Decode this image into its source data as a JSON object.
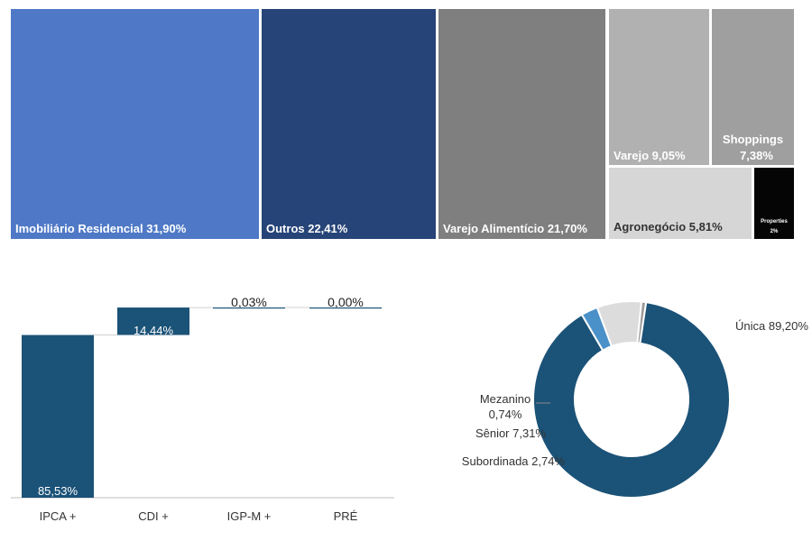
{
  "chart_data": [
    {
      "type": "treemap",
      "items": [
        {
          "label": "Imobiliário Residencial 31,90%",
          "value": 31.9,
          "color": "#4f79c6",
          "text_color": "#ffffff"
        },
        {
          "label": "Outros 22,41%",
          "value": 22.41,
          "color": "#264478",
          "text_color": "#ffffff"
        },
        {
          "label": "Varejo Alimentício 21,70%",
          "value": 21.7,
          "color": "#7f7f7f",
          "text_color": "#ffffff"
        },
        {
          "label": "Varejo 9,05%",
          "value": 9.05,
          "color": "#b1b1b1",
          "text_color": "#ffffff"
        },
        {
          "label": "Shoppings 7,38%",
          "value": 7.38,
          "color": "#9f9f9f",
          "text_color": "#ffffff",
          "lines": [
            "Shoppings",
            "7,38%"
          ]
        },
        {
          "label": "Agronegócio 5,81%",
          "value": 5.81,
          "color": "#d6d6d6",
          "text_color": "#333333"
        },
        {
          "label": "Properties 2%",
          "value": 2.0,
          "color": "#050505",
          "text_color": "#ffffff",
          "lines": [
            "Properties",
            "2%"
          ]
        }
      ]
    },
    {
      "type": "bar",
      "subtype": "waterfall",
      "categories": [
        "IPCA +",
        "CDI +",
        "IGP-M +",
        "PRÉ"
      ],
      "values": [
        85.53,
        14.44,
        0.03,
        0.0
      ],
      "data_labels": [
        "85,53%",
        "14,44%",
        "0,03%",
        "0,00%"
      ],
      "color": "#1b5277",
      "ylim": [
        0,
        100
      ]
    },
    {
      "type": "pie",
      "subtype": "donut",
      "slices": [
        {
          "label": "Única 89,20%",
          "value": 89.2,
          "color": "#1b5277"
        },
        {
          "label": "Subordinada 2,74%",
          "value": 2.74,
          "color": "#4a90c9"
        },
        {
          "label": "Sênior 7,31%",
          "value": 7.31,
          "color": "#dcdcdc"
        },
        {
          "label": "Mezanino 0,74%",
          "value": 0.74,
          "color": "#9a9a9a",
          "lines": [
            "Mezanino",
            "0,74%"
          ]
        }
      ]
    }
  ]
}
